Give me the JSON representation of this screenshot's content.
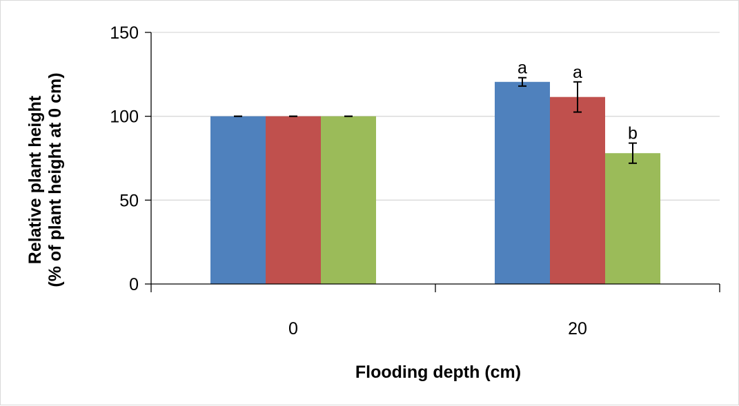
{
  "chart_data": {
    "type": "bar",
    "title": "",
    "xlabel": "Flooding depth (cm)",
    "ylabel_line1": "Relative plant height",
    "ylabel_line2": "(% of plant height at 0 cm)",
    "ylim": [
      0,
      150
    ],
    "yticks": [
      0,
      50,
      100,
      150
    ],
    "grid": true,
    "legend": "none",
    "categories": [
      "0",
      "20"
    ],
    "series": [
      {
        "color": "#4f81bd",
        "values": [
          100,
          120.5
        ],
        "errors": [
          0,
          2.5
        ],
        "sig_labels": [
          "",
          "a"
        ]
      },
      {
        "color": "#c0504d",
        "values": [
          100,
          111.5
        ],
        "errors": [
          0,
          9
        ],
        "sig_labels": [
          "",
          "a"
        ]
      },
      {
        "color": "#9bbb59",
        "values": [
          100,
          78
        ],
        "errors": [
          0,
          6
        ],
        "sig_labels": [
          "",
          "b"
        ]
      }
    ]
  }
}
